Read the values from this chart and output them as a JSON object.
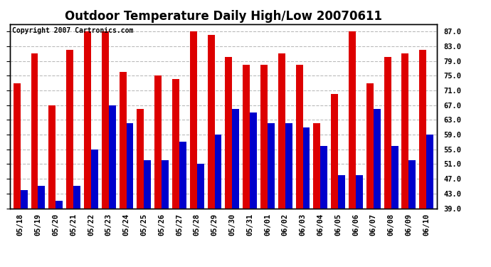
{
  "title": "Outdoor Temperature Daily High/Low 20070611",
  "copyright": "Copyright 2007 Cartronics.com",
  "categories": [
    "05/18",
    "05/19",
    "05/20",
    "05/21",
    "05/22",
    "05/23",
    "05/24",
    "05/25",
    "05/26",
    "05/27",
    "05/28",
    "05/29",
    "05/30",
    "05/31",
    "06/01",
    "06/02",
    "06/03",
    "06/04",
    "06/05",
    "06/06",
    "06/07",
    "06/08",
    "06/09",
    "06/10"
  ],
  "highs": [
    73,
    81,
    67,
    82,
    87,
    87,
    76,
    66,
    75,
    74,
    87,
    86,
    80,
    78,
    78,
    81,
    78,
    62,
    70,
    87,
    73,
    80,
    81,
    82
  ],
  "lows": [
    44,
    45,
    41,
    45,
    55,
    67,
    62,
    52,
    52,
    57,
    51,
    59,
    66,
    65,
    62,
    62,
    61,
    56,
    48,
    48,
    66,
    56,
    52,
    59
  ],
  "bar_color_high": "#dd0000",
  "bar_color_low": "#0000cc",
  "ylim_min": 39.0,
  "ylim_max": 89.0,
  "yticks": [
    39.0,
    43.0,
    47.0,
    51.0,
    55.0,
    59.0,
    63.0,
    67.0,
    71.0,
    75.0,
    79.0,
    83.0,
    87.0
  ],
  "background_color": "#ffffff",
  "plot_bg_color": "#ffffff",
  "grid_color": "#bbbbbb",
  "title_fontsize": 12,
  "copyright_fontsize": 7,
  "tick_fontsize": 7.5,
  "bar_width": 0.4,
  "bar_bottom": 39.0
}
